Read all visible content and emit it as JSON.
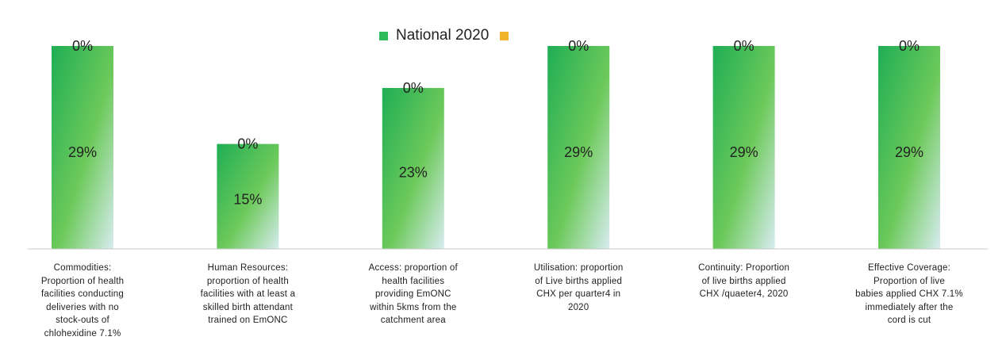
{
  "colors": {
    "national": "#2fba5c",
    "comparison": "#f2b22a"
  },
  "chart_data": {
    "type": "bar",
    "stacked": true,
    "ylim": [
      0,
      29
    ],
    "grid": false,
    "legend_position": "top",
    "categories": [
      "Commodities: Proportion of health facilities conducting deliveries with no stock-outs of chlohexidine 7.1%",
      "Human Resources: proportion of health facilities with at least a skilled birth attendant trained on EmONC",
      "Access: proportion of health facilities providing EmONC within 5kms from the catchment area",
      "Utilisation: proportion of Live births applied CHX per quarter4 in 2020",
      "Continuity: Proportion of live births applied CHX /quaeter4, 2020",
      "Effective Coverage: Proportion of live babies applied CHX 7.1% immediately after the cord is cut"
    ],
    "category_lines": [
      [
        "Commodities:",
        "Proportion of  health",
        "facilities conducting",
        "deliveries with no",
        "stock-outs of",
        "chlohexidine 7.1%"
      ],
      [
        "Human Resources:",
        "proportion  of health",
        "facilities with at least  a",
        "skilled birth attendant",
        "trained  on EmONC"
      ],
      [
        "Access: proportion of",
        "health facilities",
        "providing  EmONC",
        "within 5kms from the",
        "catchment area"
      ],
      [
        "Utilisation:  proportion",
        "of Live births applied",
        "CHX per quarter4 in",
        "2020"
      ],
      [
        "Continuity: Proportion",
        "of live births applied",
        "CHX  /quaeter4, 2020"
      ],
      [
        "Effective Coverage:",
        "Proportion of  live",
        "babies applied CHX 7.1%",
        "immediately after the",
        "cord is cut"
      ]
    ],
    "series": [
      {
        "name": "National 2020",
        "values": [
          29,
          15,
          23,
          29,
          29,
          29
        ],
        "labels": [
          "29%",
          "15%",
          "23%",
          "29%",
          "29%",
          "29%"
        ]
      },
      {
        "name": "",
        "values": [
          0,
          0,
          0,
          0,
          0,
          0
        ],
        "labels": [
          "0%",
          "0%",
          "0%",
          "0%",
          "0%",
          "0%"
        ]
      }
    ]
  }
}
